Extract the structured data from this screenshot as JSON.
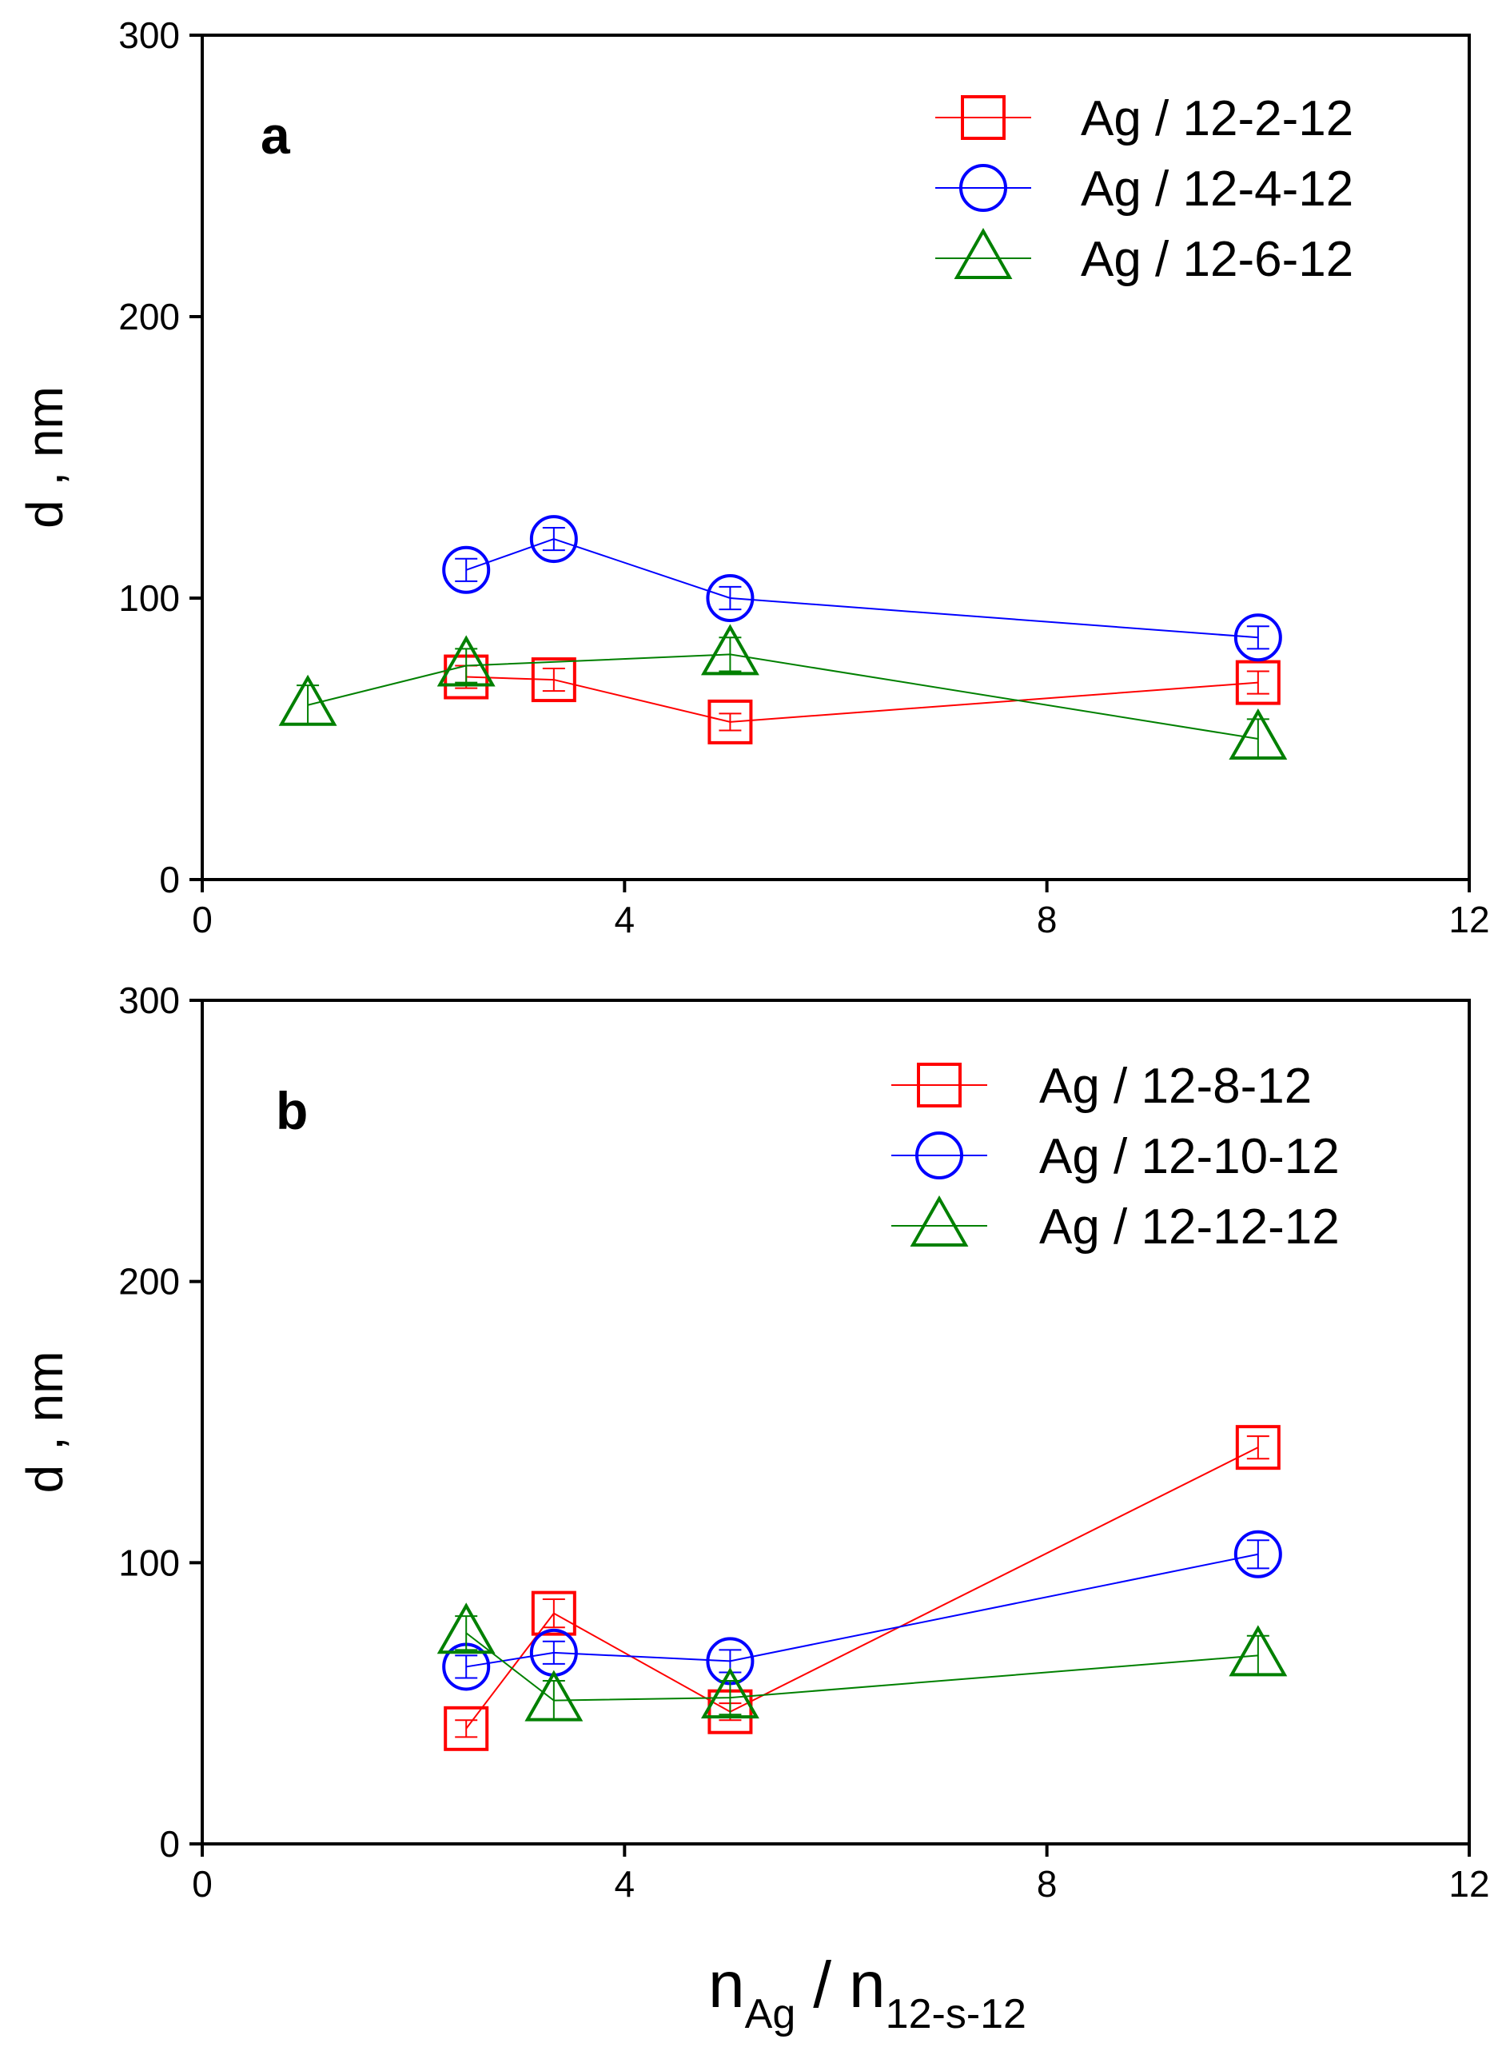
{
  "figure": {
    "xlabel_base1": "n",
    "xlabel_sub1": "Ag",
    "xlabel_sep": "/",
    "xlabel_base2": "n",
    "xlabel_sub2": "12-s-12"
  },
  "chart_data": [
    {
      "type": "line",
      "panel_label": "a",
      "title": "",
      "xlabel": "",
      "ylabel": "d , nm",
      "xlim": [
        0,
        12
      ],
      "ylim": [
        0,
        300
      ],
      "xticks": [
        0,
        4,
        8,
        12
      ],
      "yticks": [
        0,
        100,
        200,
        300
      ],
      "xtick_labels": [
        "0",
        "4",
        "8",
        "12"
      ],
      "ytick_labels": [
        "0",
        "100",
        "200",
        "300"
      ],
      "legend_position": "top-right",
      "series": [
        {
          "name": "Ag / 12-2-12",
          "color": "#ff0000",
          "marker": "square",
          "x": [
            2.5,
            3.33,
            5,
            10
          ],
          "y": [
            72,
            71,
            56,
            70
          ],
          "err": [
            4,
            4,
            3,
            4
          ]
        },
        {
          "name": "Ag / 12-4-12",
          "color": "#0000ff",
          "marker": "circle",
          "x": [
            2.5,
            3.33,
            5,
            10
          ],
          "y": [
            110,
            121,
            100,
            86
          ],
          "err": [
            4,
            4,
            4,
            4
          ]
        },
        {
          "name": "Ag / 12-6-12",
          "color": "#008000",
          "marker": "triangle",
          "x": [
            1,
            2.5,
            5,
            10
          ],
          "y": [
            62,
            76,
            80,
            50
          ],
          "err": [
            7,
            6,
            6,
            7
          ]
        }
      ]
    },
    {
      "type": "line",
      "panel_label": "b",
      "title": "",
      "xlabel": "",
      "ylabel": "d , nm",
      "xlim": [
        0,
        12
      ],
      "ylim": [
        0,
        300
      ],
      "xticks": [
        0,
        4,
        8,
        12
      ],
      "yticks": [
        0,
        100,
        200,
        300
      ],
      "xtick_labels": [
        "0",
        "4",
        "8",
        "12"
      ],
      "ytick_labels": [
        "0",
        "100",
        "200",
        "300"
      ],
      "legend_position": "top-right",
      "series": [
        {
          "name": "Ag / 12-8-12",
          "color": "#ff0000",
          "marker": "square",
          "x": [
            2.5,
            3.33,
            5,
            10
          ],
          "y": [
            41,
            82,
            47,
            141
          ],
          "err": [
            3,
            5,
            3,
            4
          ]
        },
        {
          "name": "Ag / 12-10-12",
          "color": "#0000ff",
          "marker": "circle",
          "x": [
            2.5,
            3.33,
            5,
            10
          ],
          "y": [
            63,
            68,
            65,
            103
          ],
          "err": [
            4,
            4,
            4,
            5
          ]
        },
        {
          "name": "Ag / 12-12-12",
          "color": "#008000",
          "marker": "triangle",
          "x": [
            2.5,
            3.33,
            5,
            10
          ],
          "y": [
            75,
            51,
            52,
            67
          ],
          "err": [
            6,
            7,
            6,
            7
          ]
        }
      ]
    }
  ]
}
